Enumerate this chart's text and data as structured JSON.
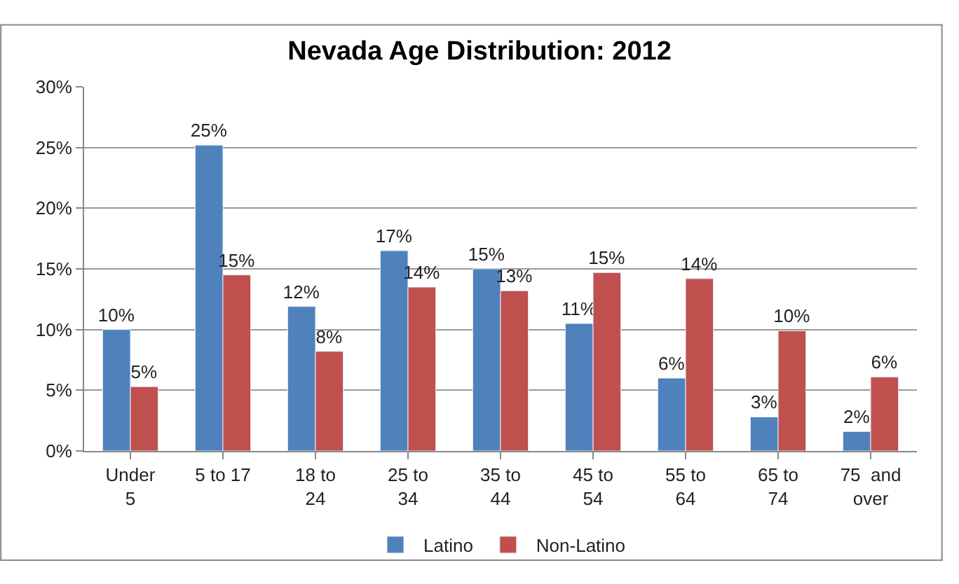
{
  "chart_data": {
    "type": "bar",
    "title": "Nevada Age Distribution: 2012",
    "categories": [
      "Under\n5",
      "5 to 17",
      "18 to\n24",
      "25 to\n34",
      "35 to\n44",
      "45 to\n54",
      "55 to\n64",
      "65 to\n74",
      "75  and\nover"
    ],
    "series": [
      {
        "name": "Latino",
        "color": "#4f81bd",
        "values": [
          10.0,
          25.2,
          11.9,
          16.5,
          15.0,
          10.5,
          6.0,
          2.8,
          1.6
        ],
        "value_labels": [
          "10%",
          "25%",
          "12%",
          "17%",
          "15%",
          "11%",
          "6%",
          "3%",
          "2%"
        ]
      },
      {
        "name": "Non-Latino",
        "color": "#c0504d",
        "values": [
          5.3,
          14.5,
          8.2,
          13.5,
          13.2,
          14.7,
          14.2,
          9.9,
          6.1
        ],
        "value_labels": [
          "5%",
          "15%",
          "8%",
          "14%",
          "13%",
          "15%",
          "14%",
          "10%",
          "6%"
        ]
      }
    ],
    "ylim": [
      0,
      30
    ],
    "yticks": [
      {
        "value": 0,
        "label": "0%"
      },
      {
        "value": 5,
        "label": "5%"
      },
      {
        "value": 10,
        "label": "10%"
      },
      {
        "value": 15,
        "label": "15%"
      },
      {
        "value": 20,
        "label": "20%"
      },
      {
        "value": 25,
        "label": "25%"
      },
      {
        "value": 30,
        "label": "30%"
      }
    ],
    "grid": "y",
    "legend": "bottom"
  }
}
